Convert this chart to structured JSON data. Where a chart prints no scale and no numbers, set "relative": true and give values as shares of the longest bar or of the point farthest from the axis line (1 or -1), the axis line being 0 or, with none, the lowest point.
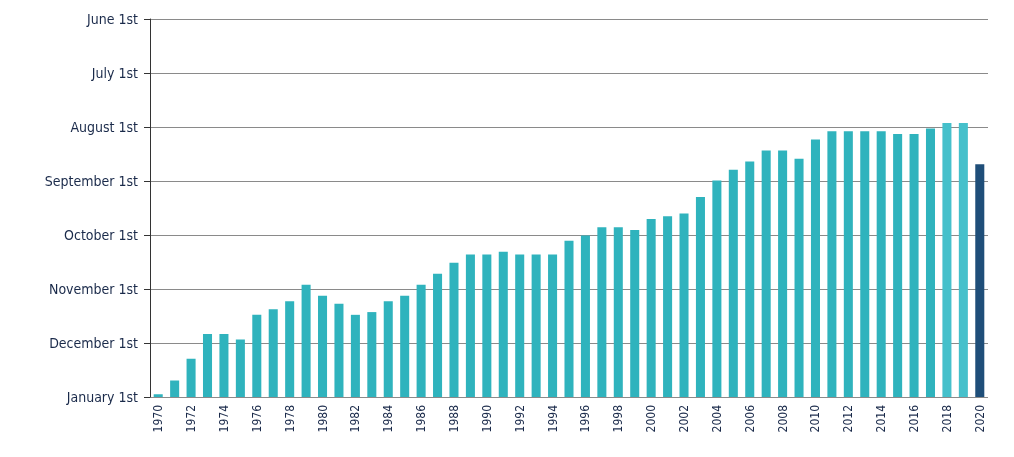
{
  "chart_data": {
    "type": "bar",
    "relative": true,
    "categories": [
      "1970",
      null,
      "1972",
      null,
      "1974",
      null,
      "1976",
      null,
      "1978",
      null,
      "1980",
      null,
      "1982",
      null,
      "1984",
      null,
      "1986",
      null,
      "1988",
      null,
      "1990",
      null,
      "1992",
      null,
      "1994",
      null,
      "1996",
      null,
      "1998",
      null,
      "2000",
      null,
      "2002",
      null,
      "2004",
      null,
      "2006",
      null,
      "2008",
      null,
      "2010",
      null,
      "2012",
      null,
      "2014",
      null,
      "2016",
      null,
      "2018",
      null,
      "2020"
    ],
    "values": [
      0.01,
      0.06,
      0.14,
      0.23,
      0.23,
      0.21,
      0.3,
      0.32,
      0.35,
      0.41,
      0.37,
      0.34,
      0.3,
      0.31,
      0.35,
      0.37,
      0.41,
      0.45,
      0.49,
      0.52,
      0.52,
      0.53,
      0.52,
      0.52,
      0.52,
      0.57,
      0.59,
      0.62,
      0.62,
      0.61,
      0.65,
      0.66,
      0.67,
      0.73,
      0.79,
      0.83,
      0.86,
      0.9,
      0.9,
      0.87,
      0.94,
      0.97,
      0.97,
      0.97,
      0.97,
      0.96,
      0.96,
      0.98,
      1,
      1,
      0.85
    ],
    "colors": [
      "#2fb3bd",
      "#2fb3bd",
      "#2fb3bd",
      "#2fb3bd",
      "#2fb3bd",
      "#2fb3bd",
      "#2fb3bd",
      "#2fb3bd",
      "#2fb3bd",
      "#2fb3bd",
      "#2fb3bd",
      "#2fb3bd",
      "#2fb3bd",
      "#2fb3bd",
      "#2fb3bd",
      "#2fb3bd",
      "#2fb3bd",
      "#2fb3bd",
      "#2fb3bd",
      "#2fb3bd",
      "#2fb3bd",
      "#2fb3bd",
      "#2fb3bd",
      "#2fb3bd",
      "#2fb3bd",
      "#2fb3bd",
      "#2fb3bd",
      "#2fb3bd",
      "#2fb3bd",
      "#2fb3bd",
      "#2fb3bd",
      "#2fb3bd",
      "#2fb3bd",
      "#2fb3bd",
      "#2fb3bd",
      "#2fb3bd",
      "#2fb3bd",
      "#2fb3bd",
      "#2fb3bd",
      "#2fb3bd",
      "#2fb3bd",
      "#2fb3bd",
      "#2fb3bd",
      "#2fb3bd",
      "#2fb3bd",
      "#2fb3bd",
      "#2fb3bd",
      "#2fb3bd",
      "#45c0cb",
      "#45c0cb",
      "#1f4e79"
    ],
    "annotations": [
      "June 1st",
      "July 1st",
      "August 1st",
      "September 1st",
      "October 1st",
      "November 1st",
      "December 1st",
      "January 1st"
    ],
    "grid": "y"
  }
}
